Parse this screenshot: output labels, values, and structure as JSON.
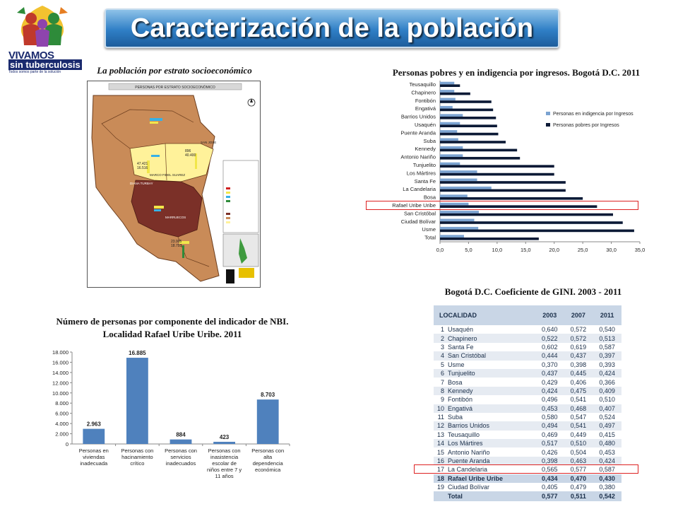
{
  "logo": {
    "word1": "VIVAMOS",
    "word2": "sin tuberculosis",
    "tagline": "Todos somos parte de la solución"
  },
  "title": "Caracterización de la población",
  "map_section": {
    "caption": "La población por estrato socioeconómico",
    "map_title": "PERSONAS POR ESTRATO SOCIOECONÓMICO",
    "labels": [
      "SAN JOSE",
      "MARCO FIDEL SUAREZ",
      "DIANA TURBAY",
      "MARRUECOS"
    ],
    "figures": [
      "47.421",
      "16.516",
      "896",
      "40.400",
      "23.905",
      "18.793"
    ]
  },
  "poverty_section": {
    "caption": "Personas pobres y en indigencia  por ingresos. Bogotá D.C. 2011"
  },
  "nbi_section": {
    "caption_line1": "Número de personas por componente del indicador de NBI.",
    "caption_line2": "Localidad Rafael Uribe Uribe. 2011"
  },
  "gini_section": {
    "caption": "Bogotá D.C. Coeficiente de GINI. 2003 - 2011",
    "header": [
      "LOCALIDAD",
      "2003",
      "2007",
      "2011"
    ],
    "rows": [
      [
        "1",
        "Usaquén",
        "0,640",
        "0,572",
        "0,540"
      ],
      [
        "2",
        "Chapinero",
        "0,522",
        "0,572",
        "0,513"
      ],
      [
        "3",
        "Santa Fe",
        "0,602",
        "0,619",
        "0,587"
      ],
      [
        "4",
        "San Cristóbal",
        "0,444",
        "0,437",
        "0,397"
      ],
      [
        "5",
        "Usme",
        "0,370",
        "0,398",
        "0,393"
      ],
      [
        "6",
        "Tunjuelito",
        "0,437",
        "0,445",
        "0,424"
      ],
      [
        "7",
        "Bosa",
        "0,429",
        "0,406",
        "0,366"
      ],
      [
        "8",
        "Kennedy",
        "0,424",
        "0,475",
        "0,409"
      ],
      [
        "9",
        "Fontibón",
        "0,496",
        "0,541",
        "0,510"
      ],
      [
        "10",
        "Engativá",
        "0,453",
        "0,468",
        "0,407"
      ],
      [
        "11",
        "Suba",
        "0,580",
        "0,547",
        "0,524"
      ],
      [
        "12",
        "Barrios Unidos",
        "0,494",
        "0,541",
        "0,497"
      ],
      [
        "13",
        "Teusaquillo",
        "0,469",
        "0,449",
        "0,415"
      ],
      [
        "14",
        "Los Mártires",
        "0,517",
        "0,510",
        "0,480"
      ],
      [
        "15",
        "Antonio Nariño",
        "0,426",
        "0,504",
        "0,453"
      ],
      [
        "16",
        "Puente Aranda",
        "0,398",
        "0,463",
        "0,424"
      ],
      [
        "17",
        "La Candelaria",
        "0,565",
        "0,577",
        "0,587"
      ],
      [
        "18",
        "Rafael Uribe Uribe",
        "0,434",
        "0,470",
        "0,430"
      ],
      [
        "19",
        "Ciudad Bolívar",
        "0,405",
        "0,479",
        "0,380"
      ]
    ],
    "total": [
      "",
      "Total",
      "0,577",
      "0,511",
      "0,542"
    ],
    "highlight_row": 17
  },
  "chart_data": [
    {
      "type": "bar",
      "orientation": "horizontal",
      "title": "Personas pobres y en indigencia  por ingresos. Bogotá D.C. 2011",
      "categories": [
        "Teusaquillo",
        "Chapinero",
        "Fontibón",
        "Engativá",
        "Barrios Unidos",
        "Usaquén",
        "Puente Aranda",
        "Suba",
        "Kennedy",
        "Antonio Nariño",
        "Tunjuelito",
        "Los Mártires",
        "Santa Fe",
        "La Candelaria",
        "Bosa",
        "Rafael Uribe Uribe",
        "San Cristóbal",
        "Ciudad Bolívar",
        "Usme",
        "Total"
      ],
      "series": [
        {
          "name": "Personas en indigencia por Ingresos",
          "color": "#7ba3d1",
          "values": [
            2.5,
            2.5,
            2.7,
            2.2,
            4.0,
            3.5,
            3.0,
            3.2,
            4.0,
            4.0,
            3.5,
            6.5,
            6.5,
            9.0,
            4.8,
            5.0,
            6.8,
            6.0,
            6.7,
            4.2
          ]
        },
        {
          "name": "Personas pobres por Ingresos",
          "color": "#0c1a36",
          "values": [
            3.5,
            5.3,
            9.0,
            9.3,
            9.8,
            10.0,
            10.2,
            11.5,
            13.5,
            14.0,
            20.0,
            20.0,
            22.0,
            22.0,
            25.0,
            27.5,
            30.3,
            32.0,
            34.0,
            17.3
          ]
        }
      ],
      "xlim": [
        0,
        35
      ],
      "xticks": [
        "0,0",
        "5,0",
        "10,0",
        "15,0",
        "20,0",
        "25,0",
        "30,0",
        "35,0"
      ],
      "legend": "right",
      "highlight_category": "Rafael Uribe Uribe"
    },
    {
      "type": "bar",
      "title": "Número de personas por componente del indicador de NBI. Localidad Rafael Uribe Uribe. 2011",
      "categories": [
        [
          "Personas en",
          "viviendas",
          "inadecuada"
        ],
        [
          "Personas con",
          "hacinamiento",
          "crítico"
        ],
        [
          "Personas con",
          "servicios",
          "inadecuados"
        ],
        [
          "Personas con",
          "inasistencia",
          "escolar de",
          "niños entre 7 y",
          "11 años"
        ],
        [
          "Personas con",
          "alta",
          "dependencia",
          "económica"
        ]
      ],
      "values": [
        2963,
        16885,
        884,
        423,
        8703
      ],
      "value_labels": [
        "2.963",
        "16.885",
        "884",
        "423",
        "8.703"
      ],
      "color": "#4f81bd",
      "ylim": [
        0,
        18000
      ],
      "yticks": [
        "0",
        "2.000",
        "4.000",
        "6.000",
        "8.000",
        "10.000",
        "12.000",
        "14.000",
        "16.000",
        "18.000"
      ],
      "grid": false
    }
  ]
}
